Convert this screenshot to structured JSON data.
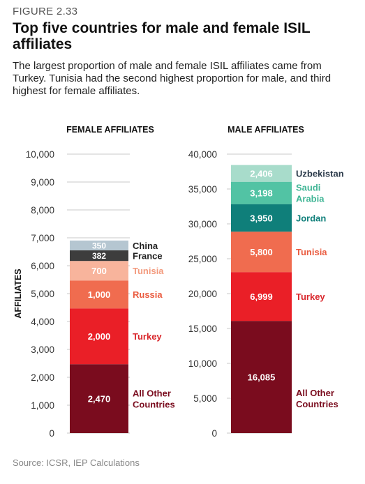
{
  "figure_label": "FIGURE 2.33",
  "title": "Top five countries for male and female ISIL affiliates",
  "subtitle": "The largest proportion of male and female ISIL affiliates came from Turkey. Tunisia had the second highest proportion for male, and third highest for female affiliates.",
  "source": "Source: ICSR, IEP Calculations",
  "chart_data": [
    {
      "type": "bar",
      "stacked": true,
      "title": "FEMALE AFFILIATES",
      "ylabel": "AFFILIATES",
      "ylim": [
        0,
        10000
      ],
      "yticks": [
        "0",
        "1,000",
        "2,000",
        "3,000",
        "4,000",
        "5,000",
        "6,000",
        "7,000",
        "8,000",
        "9,000",
        "10,000"
      ],
      "segments": [
        {
          "name": "All Other Countries",
          "value": 2470,
          "value_label": "2,470",
          "color": "#7a0c1e",
          "label_color": "#7a0c1e"
        },
        {
          "name": "Turkey",
          "value": 2000,
          "value_label": "2,000",
          "color": "#ea1f27",
          "label_color": "#d9262b"
        },
        {
          "name": "Russia",
          "value": 1000,
          "value_label": "1,000",
          "color": "#f06c4f",
          "label_color": "#ea5b3f"
        },
        {
          "name": "Tunisia",
          "value": 700,
          "value_label": "700",
          "color": "#f8b49c",
          "label_color": "#f39a7d"
        },
        {
          "name": "France",
          "value": 382,
          "value_label": "382",
          "color": "#3d3d3d",
          "label_color": "#222222"
        },
        {
          "name": "China",
          "value": 350,
          "value_label": "350",
          "color": "#b5c6d1",
          "label_color": "#222222"
        }
      ]
    },
    {
      "type": "bar",
      "stacked": true,
      "title": "MALE AFFILIATES",
      "ylim": [
        0,
        40000
      ],
      "yticks": [
        "0",
        "5,000",
        "10,000",
        "15,000",
        "20,000",
        "25,000",
        "30,000",
        "35,000",
        "40,000"
      ],
      "segments": [
        {
          "name": "All Other Countries",
          "value": 16085,
          "value_label": "16,085",
          "color": "#7a0c1e",
          "label_color": "#7a0c1e"
        },
        {
          "name": "Turkey",
          "value": 6999,
          "value_label": "6,999",
          "color": "#ea1f27",
          "label_color": "#d9262b"
        },
        {
          "name": "Tunisia",
          "value": 5800,
          "value_label": "5,800",
          "color": "#f06c4f",
          "label_color": "#ea5b3f"
        },
        {
          "name": "Jordan",
          "value": 3950,
          "value_label": "3,950",
          "color": "#0f7f7a",
          "label_color": "#0f7f7a"
        },
        {
          "name": "Saudi Arabia",
          "value": 3198,
          "value_label": "3,198",
          "color": "#52c3a4",
          "label_color": "#3fb595"
        },
        {
          "name": "Uzbekistan",
          "value": 2406,
          "value_label": "2,406",
          "color": "#a8dccb",
          "label_color": "#2b3a4a"
        }
      ]
    }
  ]
}
